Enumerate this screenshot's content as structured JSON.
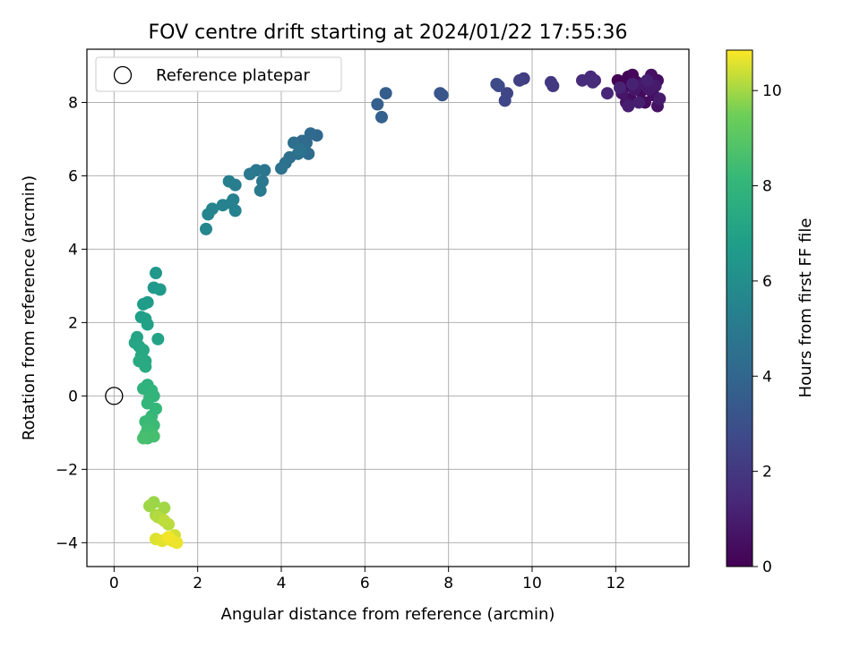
{
  "chart_data": {
    "type": "scatter",
    "title": "FOV centre drift starting at 2024/01/22 17:55:36",
    "xlabel": "Angular distance from reference (arcmin)",
    "ylabel": "Rotation from reference (arcmin)",
    "xlim": [
      -0.65,
      13.75
    ],
    "ylim": [
      -4.65,
      9.45
    ],
    "xticks": [
      0,
      2,
      4,
      6,
      8,
      10,
      12
    ],
    "yticks": [
      -4,
      -2,
      0,
      2,
      4,
      6,
      8
    ],
    "xtick_labels": [
      "0",
      "2",
      "4",
      "6",
      "8",
      "10",
      "12"
    ],
    "ytick_labels": [
      "−4",
      "−2",
      "0",
      "2",
      "4",
      "6",
      "8"
    ],
    "grid": true,
    "legend": {
      "placement": "top-left",
      "entries": [
        {
          "label": "Reference platepar",
          "marker": "open-circle"
        }
      ]
    },
    "reference_point": {
      "x": 0,
      "y": 0
    },
    "colorbar": {
      "label": "Hours from first FF file",
      "colormap": "viridis",
      "range": [
        0,
        10.85
      ],
      "ticks": [
        0,
        2,
        4,
        6,
        8,
        10
      ],
      "tick_labels": [
        "0",
        "2",
        "4",
        "6",
        "8",
        "10"
      ]
    },
    "points": [
      {
        "x": 12.05,
        "y": 8.6,
        "c": 0.05
      },
      {
        "x": 12.2,
        "y": 8.4,
        "c": 0.1
      },
      {
        "x": 12.3,
        "y": 8.7,
        "c": 0.15
      },
      {
        "x": 12.4,
        "y": 8.75,
        "c": 0.2
      },
      {
        "x": 12.5,
        "y": 8.55,
        "c": 0.25
      },
      {
        "x": 12.6,
        "y": 8.3,
        "c": 0.3
      },
      {
        "x": 12.35,
        "y": 8.1,
        "c": 0.35
      },
      {
        "x": 12.7,
        "y": 8.0,
        "c": 0.4
      },
      {
        "x": 12.9,
        "y": 8.2,
        "c": 0.45
      },
      {
        "x": 13.0,
        "y": 8.6,
        "c": 0.5
      },
      {
        "x": 12.85,
        "y": 8.75,
        "c": 0.55
      },
      {
        "x": 13.0,
        "y": 7.9,
        "c": 0.6
      },
      {
        "x": 12.25,
        "y": 8.0,
        "c": 0.65
      },
      {
        "x": 12.15,
        "y": 8.25,
        "c": 0.7
      },
      {
        "x": 12.45,
        "y": 8.35,
        "c": 0.75
      },
      {
        "x": 12.65,
        "y": 8.5,
        "c": 0.8
      },
      {
        "x": 12.8,
        "y": 8.35,
        "c": 0.85
      },
      {
        "x": 12.95,
        "y": 8.45,
        "c": 0.9
      },
      {
        "x": 13.05,
        "y": 8.1,
        "c": 0.95
      },
      {
        "x": 12.3,
        "y": 7.9,
        "c": 1.0
      },
      {
        "x": 12.55,
        "y": 8.0,
        "c": 1.05
      },
      {
        "x": 12.75,
        "y": 8.6,
        "c": 1.1
      },
      {
        "x": 12.4,
        "y": 8.5,
        "c": 1.15
      },
      {
        "x": 12.1,
        "y": 8.4,
        "c": 1.2
      },
      {
        "x": 11.8,
        "y": 8.25,
        "c": 1.3
      },
      {
        "x": 11.5,
        "y": 8.6,
        "c": 1.4
      },
      {
        "x": 11.4,
        "y": 8.7,
        "c": 1.45
      },
      {
        "x": 11.2,
        "y": 8.6,
        "c": 1.5
      },
      {
        "x": 11.45,
        "y": 8.55,
        "c": 1.55
      },
      {
        "x": 10.45,
        "y": 8.55,
        "c": 2.0
      },
      {
        "x": 10.5,
        "y": 8.45,
        "c": 2.05
      },
      {
        "x": 9.8,
        "y": 8.65,
        "c": 2.2
      },
      {
        "x": 9.7,
        "y": 8.6,
        "c": 2.3
      },
      {
        "x": 9.4,
        "y": 8.25,
        "c": 2.5
      },
      {
        "x": 9.35,
        "y": 8.05,
        "c": 2.55
      },
      {
        "x": 9.2,
        "y": 8.45,
        "c": 2.7
      },
      {
        "x": 9.15,
        "y": 8.5,
        "c": 2.75
      },
      {
        "x": 7.85,
        "y": 8.2,
        "c": 3.2
      },
      {
        "x": 7.8,
        "y": 8.25,
        "c": 3.25
      },
      {
        "x": 6.5,
        "y": 8.25,
        "c": 3.6
      },
      {
        "x": 6.3,
        "y": 7.95,
        "c": 3.7
      },
      {
        "x": 6.4,
        "y": 7.6,
        "c": 3.75
      },
      {
        "x": 4.85,
        "y": 7.1,
        "c": 4.1
      },
      {
        "x": 4.7,
        "y": 7.15,
        "c": 4.15
      },
      {
        "x": 4.6,
        "y": 6.9,
        "c": 4.2
      },
      {
        "x": 4.5,
        "y": 6.95,
        "c": 4.25
      },
      {
        "x": 4.65,
        "y": 6.6,
        "c": 4.3
      },
      {
        "x": 4.55,
        "y": 6.75,
        "c": 4.35
      },
      {
        "x": 4.4,
        "y": 6.6,
        "c": 4.4
      },
      {
        "x": 4.3,
        "y": 6.9,
        "c": 4.45
      },
      {
        "x": 4.2,
        "y": 6.5,
        "c": 4.5
      },
      {
        "x": 4.1,
        "y": 6.35,
        "c": 4.55
      },
      {
        "x": 4.0,
        "y": 6.2,
        "c": 4.6
      },
      {
        "x": 4.45,
        "y": 6.7,
        "c": 4.65
      },
      {
        "x": 3.6,
        "y": 6.15,
        "c": 4.8
      },
      {
        "x": 3.55,
        "y": 5.85,
        "c": 4.85
      },
      {
        "x": 3.4,
        "y": 6.15,
        "c": 4.9
      },
      {
        "x": 3.25,
        "y": 6.05,
        "c": 4.95
      },
      {
        "x": 3.5,
        "y": 5.6,
        "c": 5.0
      },
      {
        "x": 2.9,
        "y": 5.75,
        "c": 5.2
      },
      {
        "x": 2.75,
        "y": 5.85,
        "c": 5.25
      },
      {
        "x": 2.85,
        "y": 5.35,
        "c": 5.3
      },
      {
        "x": 2.8,
        "y": 5.25,
        "c": 5.35
      },
      {
        "x": 2.9,
        "y": 5.05,
        "c": 5.4
      },
      {
        "x": 2.6,
        "y": 5.2,
        "c": 5.45
      },
      {
        "x": 2.35,
        "y": 5.1,
        "c": 5.5
      },
      {
        "x": 2.25,
        "y": 4.95,
        "c": 5.55
      },
      {
        "x": 2.2,
        "y": 4.55,
        "c": 5.6
      },
      {
        "x": 1.0,
        "y": 3.35,
        "c": 6.5
      },
      {
        "x": 0.95,
        "y": 2.95,
        "c": 6.55
      },
      {
        "x": 1.1,
        "y": 2.9,
        "c": 6.6
      },
      {
        "x": 0.8,
        "y": 2.55,
        "c": 6.7
      },
      {
        "x": 0.7,
        "y": 2.5,
        "c": 6.75
      },
      {
        "x": 0.65,
        "y": 2.15,
        "c": 6.85
      },
      {
        "x": 0.75,
        "y": 2.1,
        "c": 6.9
      },
      {
        "x": 0.8,
        "y": 1.95,
        "c": 6.95
      },
      {
        "x": 1.05,
        "y": 1.55,
        "c": 7.05
      },
      {
        "x": 0.55,
        "y": 1.6,
        "c": 7.1
      },
      {
        "x": 0.5,
        "y": 1.45,
        "c": 7.15
      },
      {
        "x": 0.6,
        "y": 1.35,
        "c": 7.2
      },
      {
        "x": 0.7,
        "y": 1.25,
        "c": 7.25
      },
      {
        "x": 0.65,
        "y": 1.1,
        "c": 7.3
      },
      {
        "x": 0.75,
        "y": 0.95,
        "c": 7.35
      },
      {
        "x": 0.6,
        "y": 0.95,
        "c": 7.4
      },
      {
        "x": 0.75,
        "y": 0.8,
        "c": 7.45
      },
      {
        "x": 0.8,
        "y": 0.3,
        "c": 7.8
      },
      {
        "x": 0.7,
        "y": 0.2,
        "c": 7.85
      },
      {
        "x": 0.9,
        "y": 0.15,
        "c": 7.9
      },
      {
        "x": 0.85,
        "y": -0.05,
        "c": 7.95
      },
      {
        "x": 0.95,
        "y": 0.0,
        "c": 8.0
      },
      {
        "x": 0.8,
        "y": -0.2,
        "c": 8.05
      },
      {
        "x": 1.0,
        "y": -0.35,
        "c": 8.1
      },
      {
        "x": 0.9,
        "y": -0.55,
        "c": 8.15
      },
      {
        "x": 0.85,
        "y": -0.65,
        "c": 8.2
      },
      {
        "x": 0.75,
        "y": -0.7,
        "c": 8.25
      },
      {
        "x": 0.95,
        "y": -0.8,
        "c": 8.3
      },
      {
        "x": 0.8,
        "y": -0.9,
        "c": 8.35
      },
      {
        "x": 0.9,
        "y": -1.0,
        "c": 8.4
      },
      {
        "x": 0.75,
        "y": -1.05,
        "c": 8.45
      },
      {
        "x": 0.8,
        "y": -1.15,
        "c": 8.5
      },
      {
        "x": 0.95,
        "y": -1.1,
        "c": 8.55
      },
      {
        "x": 0.7,
        "y": -1.15,
        "c": 8.6
      },
      {
        "x": 0.95,
        "y": -2.9,
        "c": 9.9
      },
      {
        "x": 0.85,
        "y": -3.0,
        "c": 9.95
      },
      {
        "x": 1.2,
        "y": -3.05,
        "c": 10.0
      },
      {
        "x": 1.0,
        "y": -3.25,
        "c": 10.05
      },
      {
        "x": 1.15,
        "y": -3.35,
        "c": 10.1
      },
      {
        "x": 1.05,
        "y": -3.3,
        "c": 10.15
      },
      {
        "x": 1.3,
        "y": -3.5,
        "c": 10.2
      },
      {
        "x": 1.2,
        "y": -3.4,
        "c": 10.25
      },
      {
        "x": 1.35,
        "y": -3.85,
        "c": 10.4
      },
      {
        "x": 1.45,
        "y": -3.8,
        "c": 10.45
      },
      {
        "x": 1.25,
        "y": -3.9,
        "c": 10.5
      },
      {
        "x": 1.0,
        "y": -3.9,
        "c": 10.55
      },
      {
        "x": 1.15,
        "y": -3.95,
        "c": 10.6
      },
      {
        "x": 1.4,
        "y": -3.95,
        "c": 10.65
      },
      {
        "x": 1.5,
        "y": -4.0,
        "c": 10.7
      },
      {
        "x": 1.3,
        "y": -3.85,
        "c": 10.75
      }
    ]
  }
}
